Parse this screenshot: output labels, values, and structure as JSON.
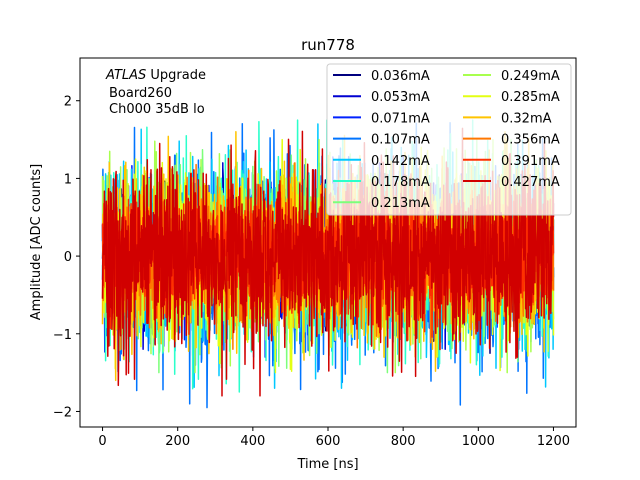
{
  "chart_data": {
    "type": "line",
    "title": "run778",
    "xlabel": "Time [ns]",
    "ylabel": "Amplitude [ADC counts]",
    "xlim": [
      -60,
      1260
    ],
    "ylim": [
      -2.2,
      2.55
    ],
    "xticks": [
      0,
      200,
      400,
      600,
      800,
      1000,
      1200
    ],
    "yticks": [
      -2,
      -1,
      0,
      1,
      2
    ],
    "grid": false,
    "legend_position": "top-right",
    "legend_columns": 2,
    "annotation": {
      "line1_italic": "ATLAS",
      "line1_rest": " Upgrade",
      "line2": "Board260",
      "line3": "Ch000 35dB lo"
    },
    "x_range": [
      0,
      1200
    ],
    "series": [
      {
        "name": "0.036mA",
        "color": "#00007f",
        "peak_abs": 1.25
      },
      {
        "name": "0.053mA",
        "color": "#0000d1",
        "peak_abs": 1.2
      },
      {
        "name": "0.071mA",
        "color": "#0022ff",
        "peak_abs": 1.3
      },
      {
        "name": "0.107mA",
        "color": "#0074ff",
        "peak_abs": 1.95
      },
      {
        "name": "0.142mA",
        "color": "#00c8ff",
        "peak_abs": 1.7
      },
      {
        "name": "0.178mA",
        "color": "#2bffcb",
        "peak_abs": 1.75
      },
      {
        "name": "0.213mA",
        "color": "#7dff7a",
        "peak_abs": 1.5
      },
      {
        "name": "0.249mA",
        "color": "#a8ff4e",
        "peak_abs": 1.5
      },
      {
        "name": "0.285mA",
        "color": "#e3ff13",
        "peak_abs": 1.5
      },
      {
        "name": "0.32mA",
        "color": "#ffc400",
        "peak_abs": 1.6
      },
      {
        "name": "0.356mA",
        "color": "#ff7700",
        "peak_abs": 1.2
      },
      {
        "name": "0.391mA",
        "color": "#ff3000",
        "peak_abs": 1.1
      },
      {
        "name": "0.427mA",
        "color": "#d10000",
        "peak_abs": 1.8
      }
    ]
  }
}
